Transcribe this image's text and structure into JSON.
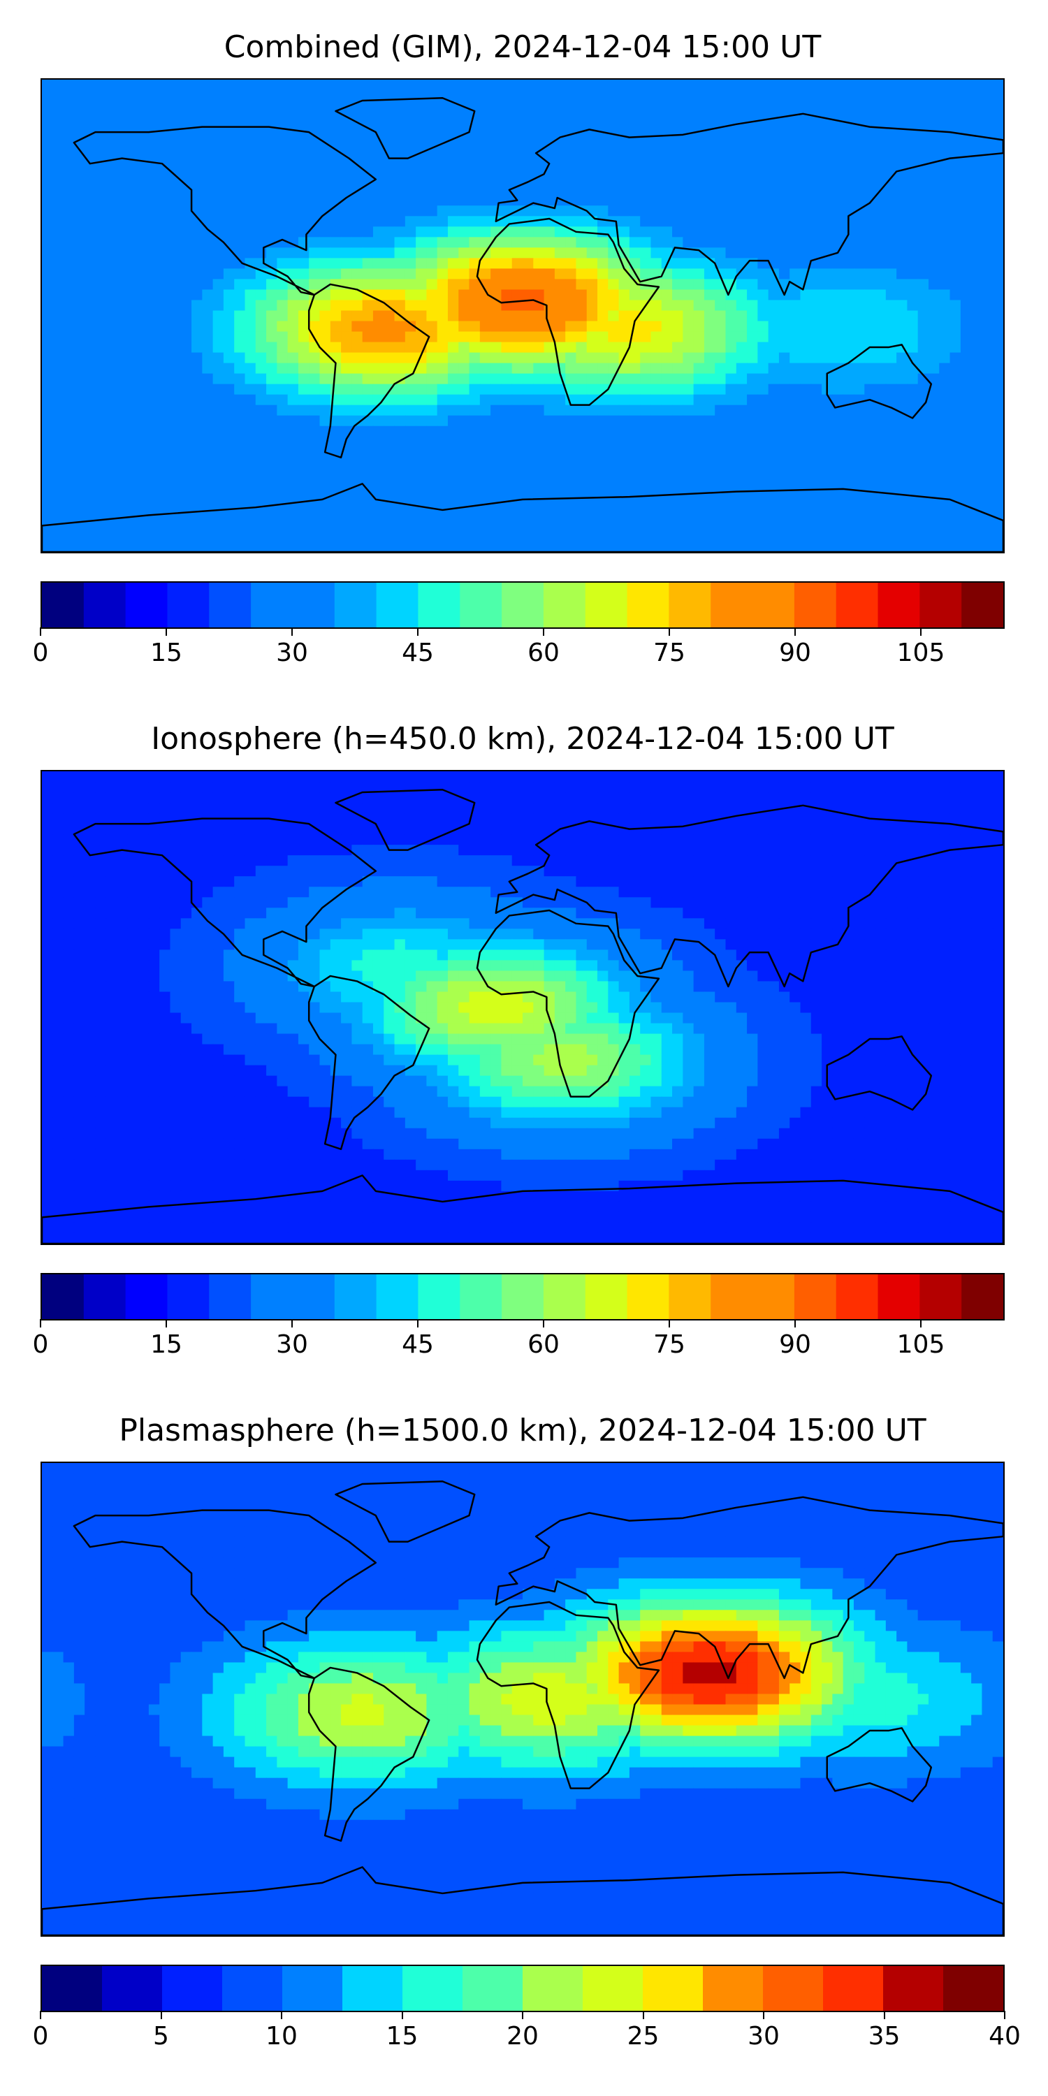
{
  "chart_data": [
    {
      "type": "heatmap",
      "title": "Combined (GIM), 2024-12-04 15:00 UT",
      "colorbar": {
        "min": 0,
        "max": 115,
        "step": 5,
        "ticks": [
          0,
          15,
          30,
          45,
          60,
          75,
          90,
          105
        ],
        "tick_labels": [
          "0",
          "15",
          "30",
          "45",
          "60",
          "75",
          "90",
          "105"
        ]
      },
      "hotspots": [
        {
          "lon": 0,
          "lat": 5,
          "value": 92
        },
        {
          "lon": -52,
          "lat": -5,
          "value": 82
        },
        {
          "lon": 40,
          "lat": -5,
          "value": 72
        },
        {
          "lon": 120,
          "lat": -5,
          "value": 45
        }
      ],
      "background_value": 25
    },
    {
      "type": "heatmap",
      "title": "Ionosphere  (h=450.0 km), 2024-12-04 15:00 UT",
      "colorbar": {
        "min": 0,
        "max": 115,
        "step": 5,
        "ticks": [
          0,
          15,
          30,
          45,
          60,
          75,
          90,
          105
        ],
        "tick_labels": [
          "0",
          "15",
          "30",
          "45",
          "60",
          "75",
          "90",
          "105"
        ]
      },
      "hotspots": [
        {
          "lon": -10,
          "lat": 0,
          "value": 68
        },
        {
          "lon": -45,
          "lat": 15,
          "value": 48
        },
        {
          "lon": 15,
          "lat": -20,
          "value": 62
        }
      ],
      "background_value": 18
    },
    {
      "type": "heatmap",
      "title": "Plasmasphere (h=1500.0 km), 2024-12-04 15:00 UT",
      "colorbar": {
        "min": 0,
        "max": 40,
        "step": 2.5,
        "ticks": [
          0,
          5,
          10,
          15,
          20,
          25,
          30,
          35,
          40
        ],
        "tick_labels": [
          "0",
          "5",
          "10",
          "15",
          "20",
          "25",
          "30",
          "35",
          "40"
        ]
      },
      "hotspots": [
        {
          "lon": 70,
          "lat": 10,
          "value": 36
        },
        {
          "lon": -60,
          "lat": -5,
          "value": 23
        },
        {
          "lon": 10,
          "lat": 0,
          "value": 24
        },
        {
          "lon": 130,
          "lat": 0,
          "value": 16
        }
      ],
      "background_value": 8
    }
  ],
  "colormap": [
    "#00007f",
    "#0000c8",
    "#0000ff",
    "#0020ff",
    "#0050ff",
    "#0080ff",
    "#00a8ff",
    "#00d4ff",
    "#20ffd7",
    "#4dffaa",
    "#7fff7f",
    "#aaff4d",
    "#d4ff1a",
    "#ffe600",
    "#ffb900",
    "#ff8c00",
    "#ff5f00",
    "#ff2f00",
    "#e40000",
    "#b40000",
    "#7f0000"
  ]
}
